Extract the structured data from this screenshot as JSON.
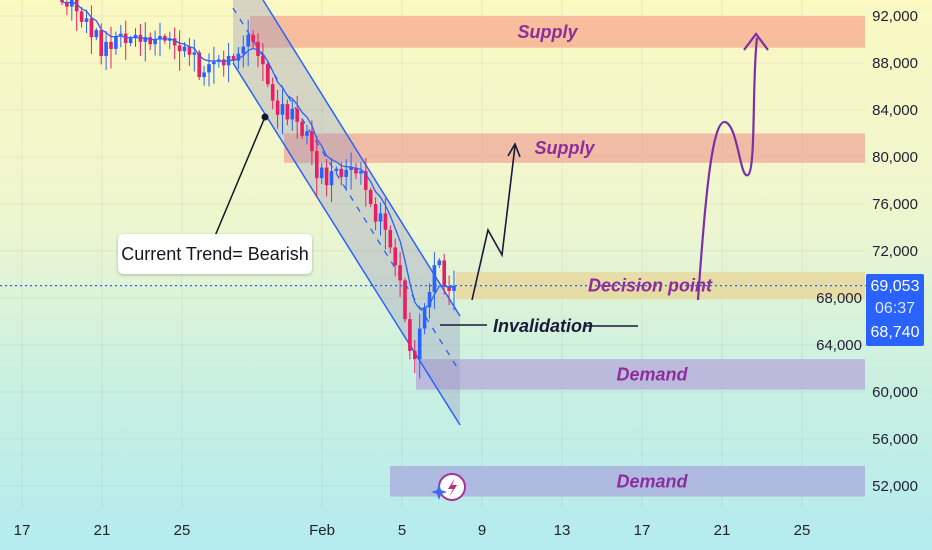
{
  "chart_data": {
    "type": "candlestick",
    "title": "",
    "y_axis": {
      "ticks": [
        52000,
        56000,
        60000,
        64000,
        68000,
        72000,
        76000,
        80000,
        84000,
        88000,
        92000
      ],
      "tick_labels": [
        "52,000",
        "56,000",
        "60,000",
        "64,000",
        "68,000",
        "72,000",
        "76,000",
        "80,000",
        "84,000",
        "88,000",
        "92,000"
      ],
      "range": [
        50000,
        93500
      ]
    },
    "x_axis": {
      "ticks": [
        {
          "day": 17,
          "label": "17"
        },
        {
          "day": 21,
          "label": "21"
        },
        {
          "day": 25,
          "label": "25"
        },
        {
          "day": 32,
          "label": "Feb"
        },
        {
          "day": 36,
          "label": "5"
        },
        {
          "day": 40,
          "label": "9"
        },
        {
          "day": 44,
          "label": "13"
        },
        {
          "day": 48,
          "label": "17"
        },
        {
          "day": 52,
          "label": "21"
        },
        {
          "day": 56,
          "label": "25"
        }
      ],
      "range_days": [
        15.9,
        62.3
      ]
    },
    "candles_start_day": 19,
    "candles_per_day": 4,
    "closes": [
      93200,
      92800,
      93500,
      92400,
      91500,
      91800,
      90200,
      90800,
      88600,
      89800,
      89200,
      90300,
      90500,
      89700,
      90100,
      90400,
      89800,
      90200,
      89600,
      90000,
      90300,
      89900,
      90100,
      89500,
      89000,
      89400,
      88700,
      88900,
      86800,
      87200,
      87900,
      88100,
      88300,
      87800,
      88600,
      88200,
      88800,
      89400,
      90400,
      89800,
      88600,
      87900,
      86200,
      84800,
      83600,
      84500,
      83200,
      84100,
      83000,
      81800,
      82200,
      80500,
      78200,
      79100,
      77600,
      78800,
      79000,
      78300,
      78900,
      79100,
      78600,
      78800,
      77200,
      76000,
      74500,
      75200,
      73800,
      72300,
      70800,
      69500,
      66200,
      63500,
      62800,
      65400,
      67200,
      68500,
      70800,
      71200,
      69000,
      68600,
      69053
    ],
    "current_price": {
      "value": 69053,
      "label": "69,053",
      "countdown": "06:37"
    },
    "low_price": {
      "value": 68740,
      "label": "68,740"
    },
    "zones": [
      {
        "name": "Supply",
        "low": 89300,
        "high": 92000,
        "start_day": 28.4,
        "color": "#f5a98f"
      },
      {
        "name": "Supply",
        "low": 79500,
        "high": 82000,
        "start_day": 30.1,
        "color": "#efa898"
      },
      {
        "name": "Decision point",
        "low": 67900,
        "high": 70200,
        "start_day": 38.7,
        "color": "#e8d595"
      },
      {
        "name": "Demand",
        "low": 60200,
        "high": 62800,
        "start_day": 36.7,
        "color": "#b7a8da"
      },
      {
        "name": "Demand",
        "low": 51100,
        "high": 53700,
        "start_day": 35.4,
        "color": "#a9a8dc"
      }
    ],
    "annotations": {
      "trend": "Current Trend= Bearish",
      "invalidation": "Invalidation"
    },
    "colors": {
      "up": "#2962ff",
      "down": "#e91e63",
      "channel": "#2962ff",
      "arrow_dark": "#1a1a3a",
      "arrow_purple": "#7b2fa8"
    }
  }
}
